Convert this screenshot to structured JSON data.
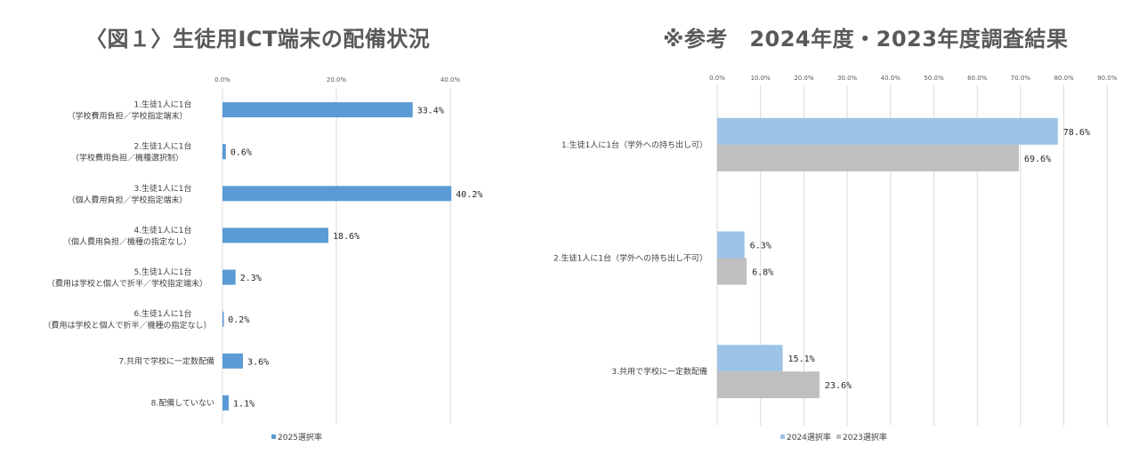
{
  "left_title": "〈図１〉生徒用ICT端末の配備状況",
  "right_title": "※参考　2024年度・2023年度調査結果",
  "colors": {
    "s2025": "#5b9bd5",
    "s2024": "#9dc3e6",
    "s2023": "#bfbfbf",
    "grid": "#d9d9d9"
  },
  "chart_data": [
    {
      "type": "bar",
      "orientation": "horizontal",
      "title": "〈図１〉生徒用ICT端末の配備状況",
      "categories": [
        [
          "1.生徒1人に1台",
          "（学校費用負担／学校指定端末）"
        ],
        [
          "2.生徒1人に1台",
          "（学校費用負担／機種選択制）"
        ],
        [
          "3.生徒1人に1台",
          "（個人費用負担／学校指定端末）"
        ],
        [
          "4.生徒1人に1台",
          "（個人費用負担／機種の指定なし）"
        ],
        [
          "5.生徒1人に1台",
          "（費用は学校と個人で折半／学校指定端末）"
        ],
        [
          "6.生徒1人に1台",
          "（費用は学校と個人で折半／機種の指定なし）"
        ],
        [
          "7.共用で学校に一定数配備"
        ],
        [
          "8.配備していない"
        ]
      ],
      "series": [
        {
          "name": "2025選択率",
          "values": [
            33.4,
            0.6,
            40.2,
            18.6,
            2.3,
            0.2,
            3.6,
            1.1
          ],
          "labels": [
            "33.4%",
            "0.6%",
            "40.2%",
            "18.6%",
            "2.3%",
            "0.2%",
            "3.6%",
            "1.1%"
          ]
        }
      ],
      "x_ticks": [
        "0.0%",
        "20.0%",
        "40.0%"
      ],
      "xlim": [
        0,
        42
      ],
      "grid": true,
      "legend": "bottom"
    },
    {
      "type": "bar",
      "orientation": "horizontal",
      "title": "※参考　2024年度・2023年度調査結果",
      "categories": [
        [
          "1.生徒1人に1台（学外への持ち出し可）"
        ],
        [
          "2.生徒1人に1台（学外への持ち出し不可）"
        ],
        [
          "3.共用で学校に一定数配備"
        ]
      ],
      "series": [
        {
          "name": "2024選択率",
          "values": [
            78.6,
            6.3,
            15.1
          ],
          "labels": [
            "78.6%",
            "6.3%",
            "15.1%"
          ]
        },
        {
          "name": "2023選択率",
          "values": [
            69.6,
            6.8,
            23.6
          ],
          "labels": [
            "69.6%",
            "6.8%",
            "23.6%"
          ]
        }
      ],
      "x_ticks": [
        "0.0%",
        "10.0%",
        "20.0%",
        "30.0%",
        "40.0%",
        "50.0%",
        "60.0%",
        "70.0%",
        "80.0%",
        "90.0%"
      ],
      "xlim": [
        0,
        90
      ],
      "grid": true,
      "legend": "bottom"
    }
  ]
}
